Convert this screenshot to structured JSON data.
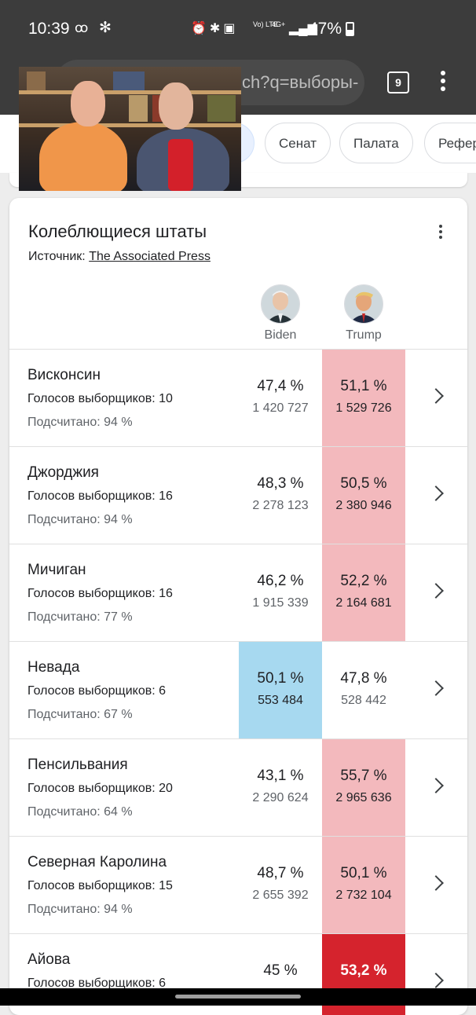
{
  "status_bar": {
    "time": "10:39",
    "battery": "47%",
    "lte_label": "Vo) LTE",
    "network_label": "4G+"
  },
  "browser": {
    "url_fragment": "ch?q=выборы-",
    "tab_count": "9"
  },
  "chips": [
    "Сенат",
    "Палата",
    "Рефер"
  ],
  "card": {
    "title": "Колеблющиеся штаты",
    "source_label": "Источник:",
    "source_link": "The Associated Press",
    "candidates": [
      {
        "name": "Biden",
        "color": "#a7d9f0"
      },
      {
        "name": "Trump",
        "color": "#f3b9bd"
      }
    ],
    "rows": [
      {
        "state": "Висконсин",
        "electoral": "Голосов выборщиков: 10",
        "counted": "Подсчитано: 94 %",
        "biden_pct": "47,4 %",
        "biden_votes": "1 420 727",
        "trump_pct": "51,1 %",
        "trump_votes": "1 529 726",
        "leader": "trump"
      },
      {
        "state": "Джорджия",
        "electoral": "Голосов выборщиков: 16",
        "counted": "Подсчитано: 94 %",
        "biden_pct": "48,3 %",
        "biden_votes": "2 278 123",
        "trump_pct": "50,5 %",
        "trump_votes": "2 380 946",
        "leader": "trump"
      },
      {
        "state": "Мичиган",
        "electoral": "Голосов выборщиков: 16",
        "counted": "Подсчитано: 77 %",
        "biden_pct": "46,2 %",
        "biden_votes": "1 915 339",
        "trump_pct": "52,2 %",
        "trump_votes": "2 164 681",
        "leader": "trump"
      },
      {
        "state": "Невада",
        "electoral": "Голосов выборщиков: 6",
        "counted": "Подсчитано: 67 %",
        "biden_pct": "50,1 %",
        "biden_votes": "553 484",
        "trump_pct": "47,8 %",
        "trump_votes": "528 442",
        "leader": "biden"
      },
      {
        "state": "Пенсильвания",
        "electoral": "Голосов выборщиков: 20",
        "counted": "Подсчитано: 64 %",
        "biden_pct": "43,1 %",
        "biden_votes": "2 290 624",
        "trump_pct": "55,7 %",
        "trump_votes": "2 965 636",
        "leader": "trump"
      },
      {
        "state": "Северная Каролина",
        "electoral": "Голосов выборщиков: 15",
        "counted": "Подсчитано: 94 %",
        "biden_pct": "48,7 %",
        "biden_votes": "2 655 392",
        "trump_pct": "50,1 %",
        "trump_votes": "2 732 104",
        "leader": "trump"
      },
      {
        "state": "Айова",
        "electoral": "Голосов выборщиков: 6",
        "counted": "",
        "biden_pct": "45 %",
        "biden_votes": "",
        "trump_pct": "53,2 %",
        "trump_votes": "",
        "leader": "trump-called"
      }
    ]
  }
}
